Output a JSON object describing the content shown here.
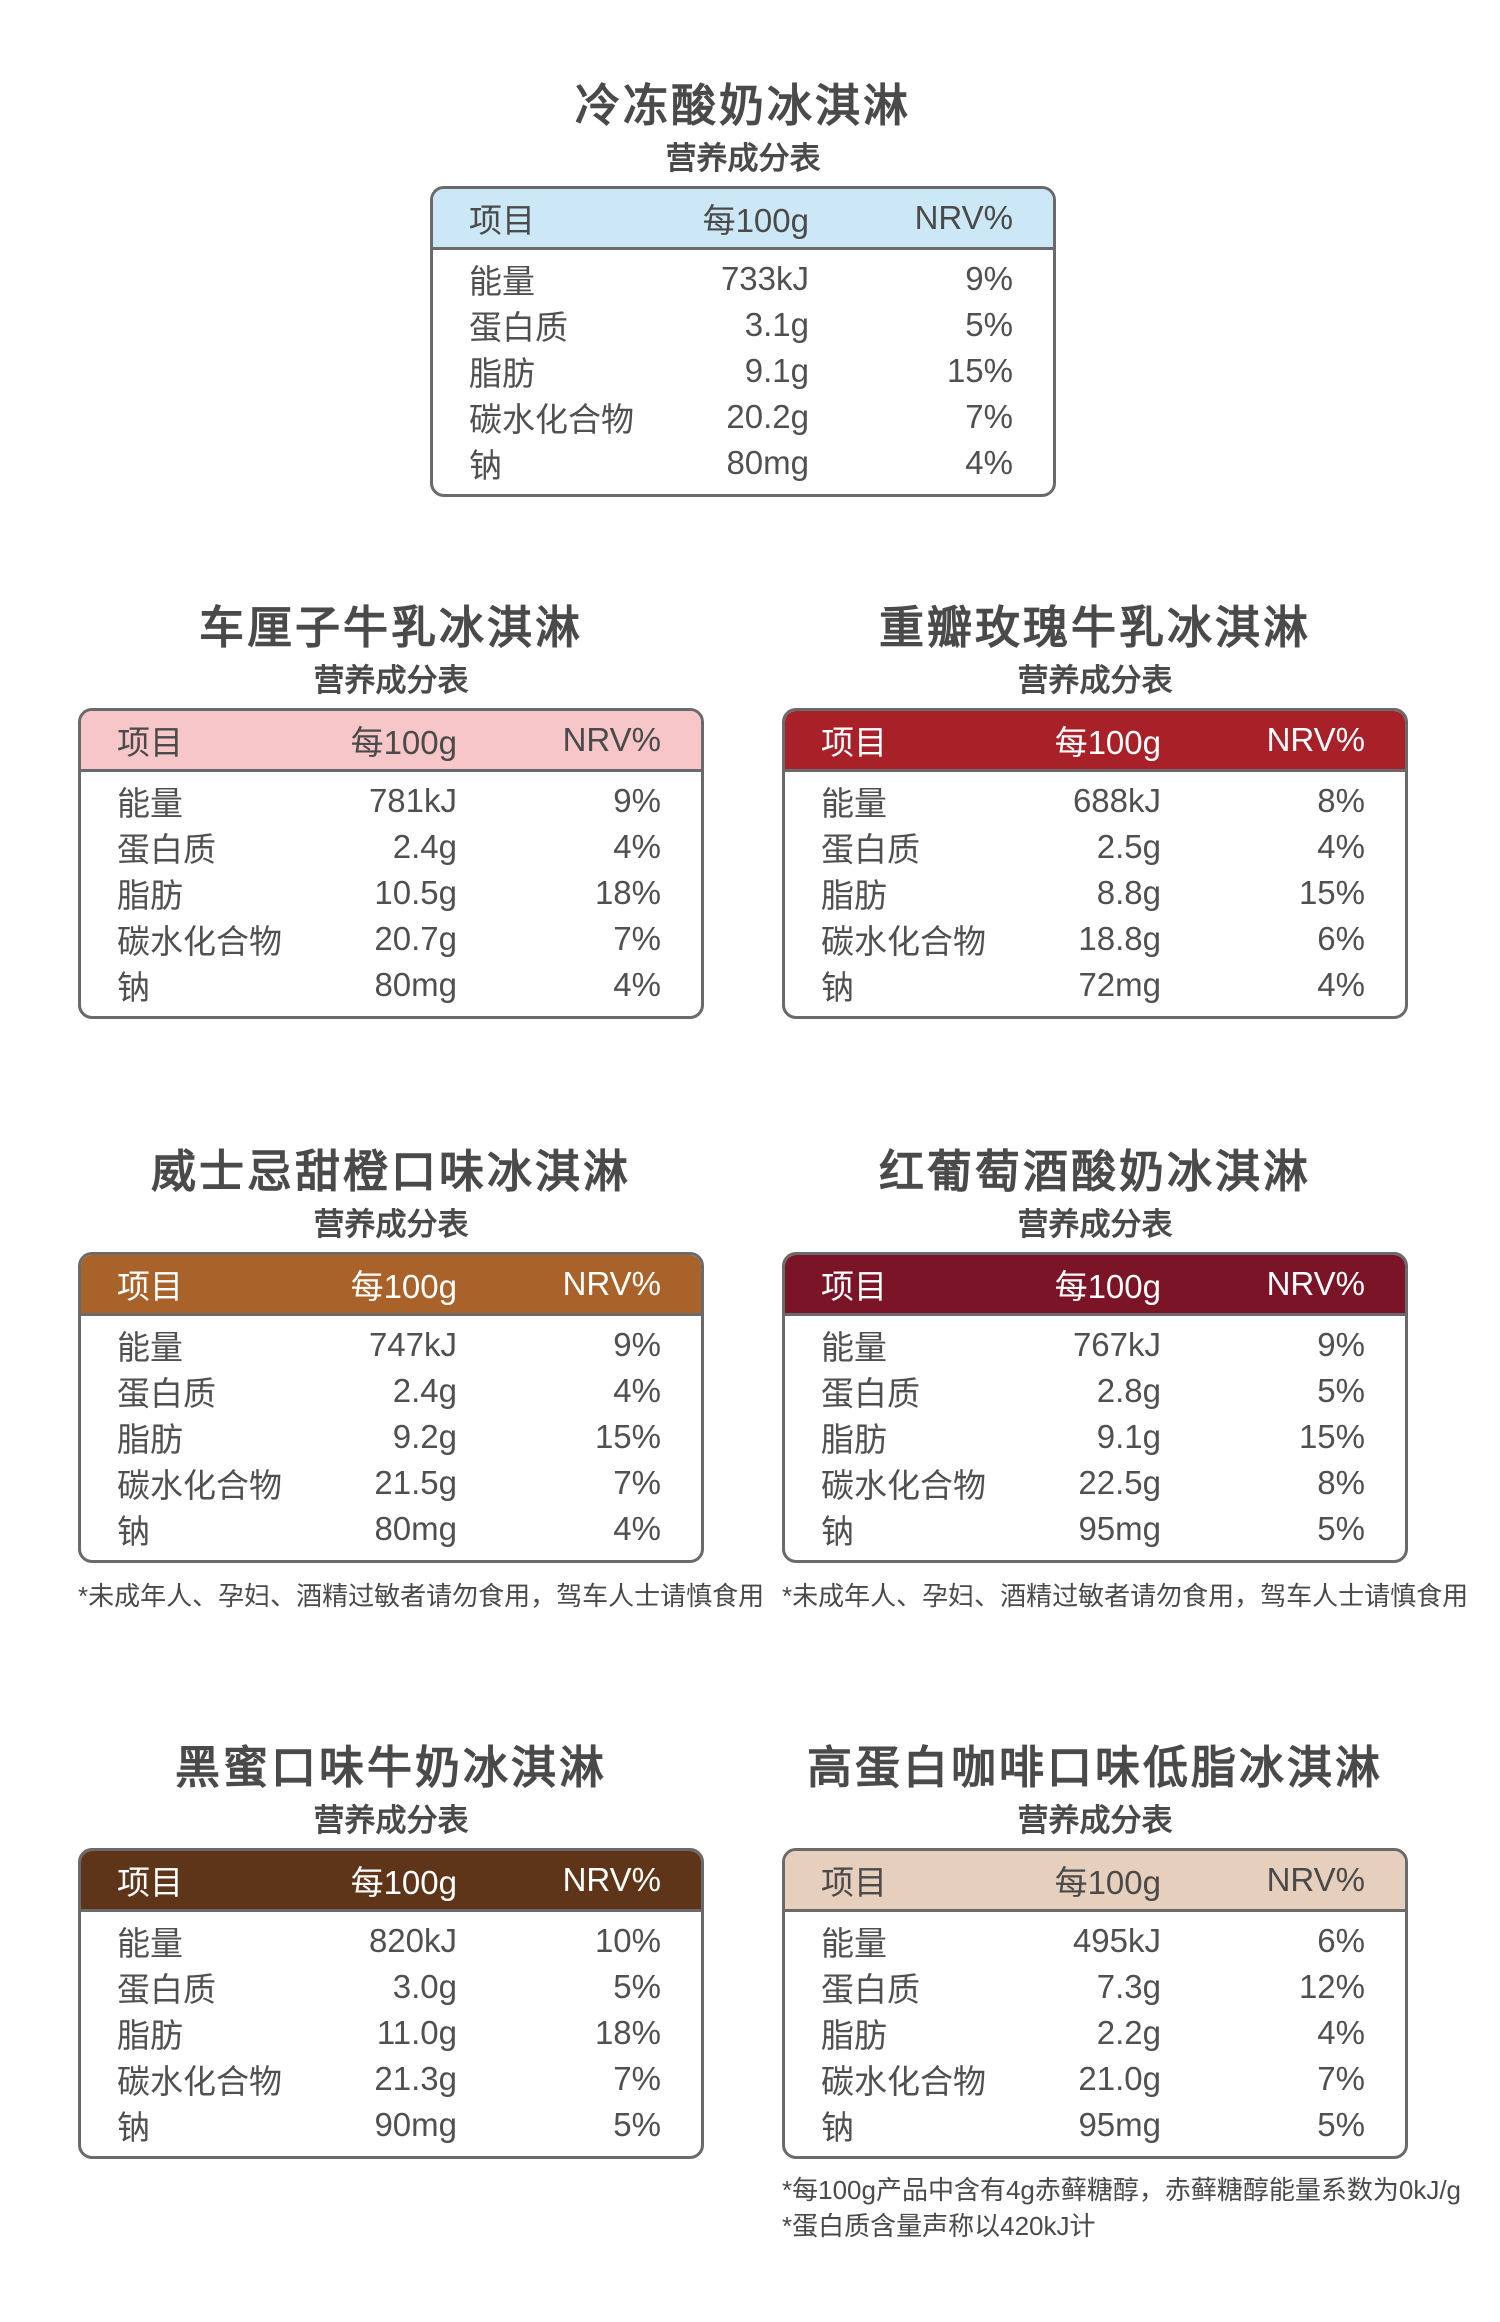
{
  "table_caption": "营养成分表",
  "header": {
    "item": "项目",
    "per100g": "每100g",
    "nrv": "NRV%"
  },
  "nutrient_names": [
    "能量",
    "蛋白质",
    "脂肪",
    "碳水化合物",
    "钠"
  ],
  "products": [
    {
      "title": "冷冻酸奶冰淇淋",
      "header_color": "#cce8f6",
      "header_text_style": "light",
      "values": [
        "733kJ",
        "3.1g",
        "9.1g",
        "20.2g",
        "80mg"
      ],
      "nrv": [
        "9%",
        "5%",
        "15%",
        "7%",
        "4%"
      ],
      "footnotes": []
    },
    {
      "title": "车厘子牛乳冰淇淋",
      "header_color": "#f6c6c8",
      "header_text_style": "light",
      "values": [
        "781kJ",
        "2.4g",
        "10.5g",
        "20.7g",
        "80mg"
      ],
      "nrv": [
        "9%",
        "4%",
        "18%",
        "7%",
        "4%"
      ],
      "footnotes": []
    },
    {
      "title": "重瓣玫瑰牛乳冰淇淋",
      "header_color": "#a82129",
      "header_text_style": "dark",
      "values": [
        "688kJ",
        "2.5g",
        "8.8g",
        "18.8g",
        "72mg"
      ],
      "nrv": [
        "8%",
        "4%",
        "15%",
        "6%",
        "4%"
      ],
      "footnotes": []
    },
    {
      "title": "威士忌甜橙口味冰淇淋",
      "header_color": "#a8622a",
      "header_text_style": "dark",
      "values": [
        "747kJ",
        "2.4g",
        "9.2g",
        "21.5g",
        "80mg"
      ],
      "nrv": [
        "9%",
        "4%",
        "15%",
        "7%",
        "4%"
      ],
      "footnotes": [
        "*未成年人、孕妇、酒精过敏者请勿食用，驾车人士请慎食用"
      ]
    },
    {
      "title": "红葡萄酒酸奶冰淇淋",
      "header_color": "#7c1428",
      "header_text_style": "dark",
      "values": [
        "767kJ",
        "2.8g",
        "9.1g",
        "22.5g",
        "95mg"
      ],
      "nrv": [
        "9%",
        "5%",
        "15%",
        "8%",
        "5%"
      ],
      "footnotes": [
        "*未成年人、孕妇、酒精过敏者请勿食用，驾车人士请慎食用"
      ]
    },
    {
      "title": "黑蜜口味牛奶冰淇淋",
      "header_color": "#5e3519",
      "header_text_style": "dark",
      "values": [
        "820kJ",
        "3.0g",
        "11.0g",
        "21.3g",
        "90mg"
      ],
      "nrv": [
        "10%",
        "5%",
        "18%",
        "7%",
        "5%"
      ],
      "footnotes": []
    },
    {
      "title": "高蛋白咖啡口味低脂冰淇淋",
      "header_color": "#e6cfbd",
      "header_text_style": "light",
      "values": [
        "495kJ",
        "7.3g",
        "2.2g",
        "21.0g",
        "95mg"
      ],
      "nrv": [
        "6%",
        "12%",
        "4%",
        "7%",
        "5%"
      ],
      "footnotes": [
        "*每100g产品中含有4g赤藓糖醇，赤藓糖醇能量系数为0kJ/g",
        "*蛋白质含量声称以420kJ计"
      ]
    }
  ]
}
